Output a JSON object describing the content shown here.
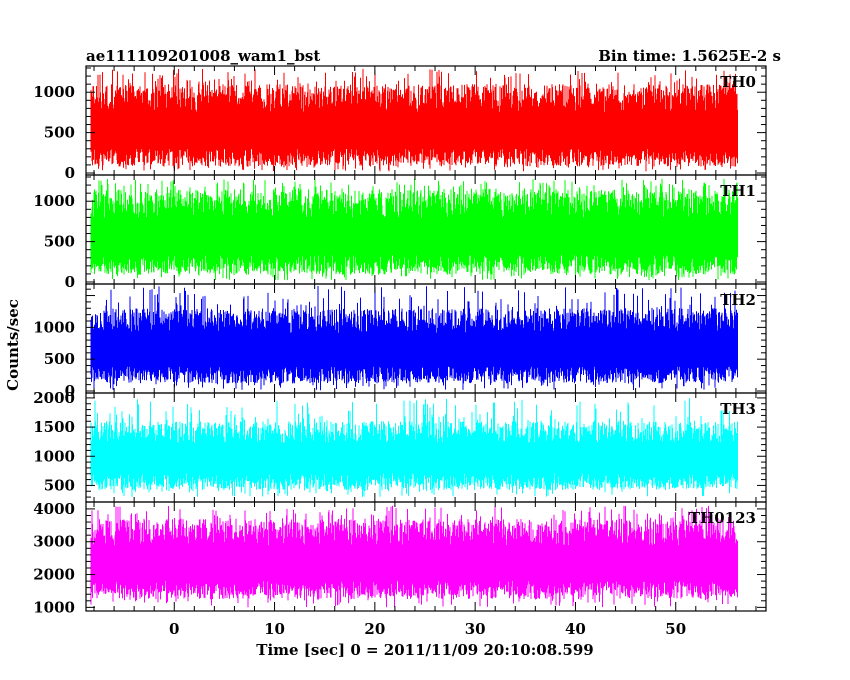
{
  "header": {
    "title": "ae111109201008_wam1_bst",
    "bin_time": "Bin time: 1.5625E-2 s"
  },
  "axes": {
    "ylabel": "Counts/sec",
    "xlabel": "Time [sec] 0 = 2011/11/09 20:10:08.599"
  },
  "colors": {
    "TH0": "#ff0000",
    "TH1": "#00ff00",
    "TH2": "#0000ff",
    "TH3": "#00ffff",
    "TH0123": "#ff00ff",
    "frame": "#000000"
  },
  "chart_data": [
    {
      "type": "line",
      "name": "TH0",
      "x_range": [
        -8.3,
        56.2
      ],
      "xlim": [
        -8.8,
        59
      ],
      "ylim": [
        0,
        1300
      ],
      "yticks": [
        0,
        500,
        1000
      ],
      "mean": 520,
      "band_low": 80,
      "band_high": 1100,
      "peak_max": 1290,
      "min_dip": 20,
      "xticks": [
        0,
        10,
        20,
        30,
        40,
        50
      ]
    },
    {
      "type": "line",
      "name": "TH1",
      "x_range": [
        -8.3,
        56.2
      ],
      "xlim": [
        -8.8,
        59
      ],
      "ylim": [
        0,
        1300
      ],
      "yticks": [
        0,
        500,
        1000
      ],
      "mean": 560,
      "band_low": 90,
      "band_high": 1150,
      "peak_max": 1280,
      "min_dip": 20,
      "xticks": [
        0,
        10,
        20,
        30,
        40,
        50
      ]
    },
    {
      "type": "line",
      "name": "TH2",
      "x_range": [
        -8.3,
        56.2
      ],
      "xlim": [
        -8.8,
        59
      ],
      "ylim": [
        0,
        1650
      ],
      "yticks": [
        0,
        500,
        1000
      ],
      "mean": 640,
      "band_low": 120,
      "band_high": 1300,
      "peak_max": 1650,
      "min_dip": 10,
      "xticks": [
        0,
        10,
        20,
        30,
        40,
        50
      ]
    },
    {
      "type": "line",
      "name": "TH3",
      "x_range": [
        -8.3,
        56.2
      ],
      "xlim": [
        -8.8,
        59
      ],
      "ylim": [
        250,
        2050
      ],
      "yticks": [
        500,
        1000,
        1500,
        2000
      ],
      "mean": 980,
      "band_low": 420,
      "band_high": 1600,
      "peak_max": 2000,
      "min_dip": 300,
      "xticks": [
        0,
        10,
        20,
        30,
        40,
        50
      ]
    },
    {
      "type": "line",
      "name": "TH0123",
      "x_range": [
        -8.3,
        56.2
      ],
      "xlim": [
        -8.8,
        59
      ],
      "ylim": [
        950,
        4150
      ],
      "yticks": [
        1000,
        2000,
        3000,
        4000
      ],
      "mean": 2350,
      "band_low": 1250,
      "band_high": 3700,
      "peak_max": 4100,
      "min_dip": 1000,
      "xticks": [
        0,
        10,
        20,
        30,
        40,
        50
      ]
    }
  ]
}
